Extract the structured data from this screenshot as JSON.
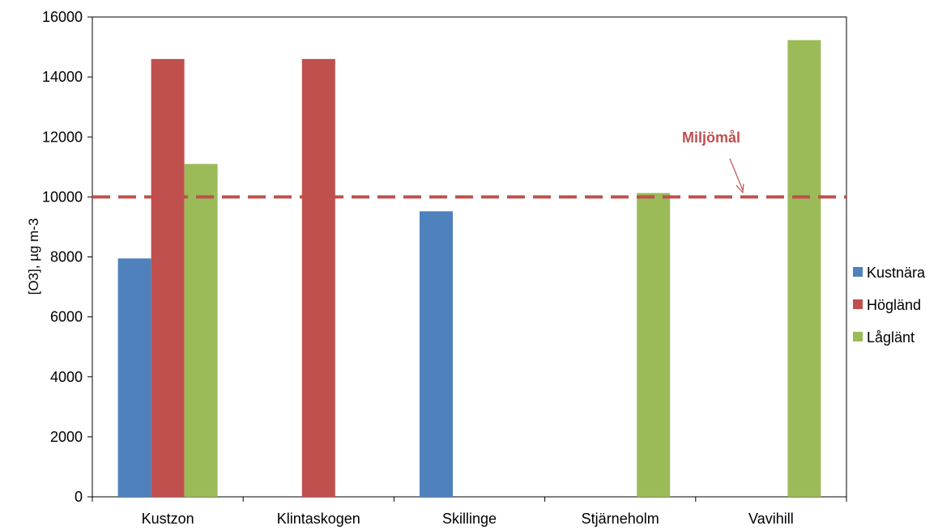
{
  "chart_data": {
    "type": "bar",
    "categories": [
      "Kustzon",
      "Klintaskogen",
      "Skillinge",
      "Stjärneholm",
      "Vavihill"
    ],
    "series": [
      {
        "name": "Kustnära",
        "color": "#4f81bd",
        "values": [
          7950,
          null,
          9520,
          null,
          null
        ]
      },
      {
        "name": "Högländ",
        "color": "#c0504d",
        "values": [
          14600,
          14600,
          null,
          null,
          null
        ]
      },
      {
        "name": "Låglänt",
        "color": "#9bbb59",
        "values": [
          11100,
          null,
          null,
          10130,
          15230
        ]
      }
    ],
    "ylabel": "[O3], µg m-3",
    "ylim": [
      0,
      16000
    ],
    "yticks": [
      0,
      2000,
      4000,
      6000,
      8000,
      10000,
      12000,
      14000,
      16000
    ],
    "legend_position": "right",
    "grid": false,
    "threshold": {
      "value": 10000,
      "label": "Miljömål",
      "color": "#c0504d"
    }
  }
}
